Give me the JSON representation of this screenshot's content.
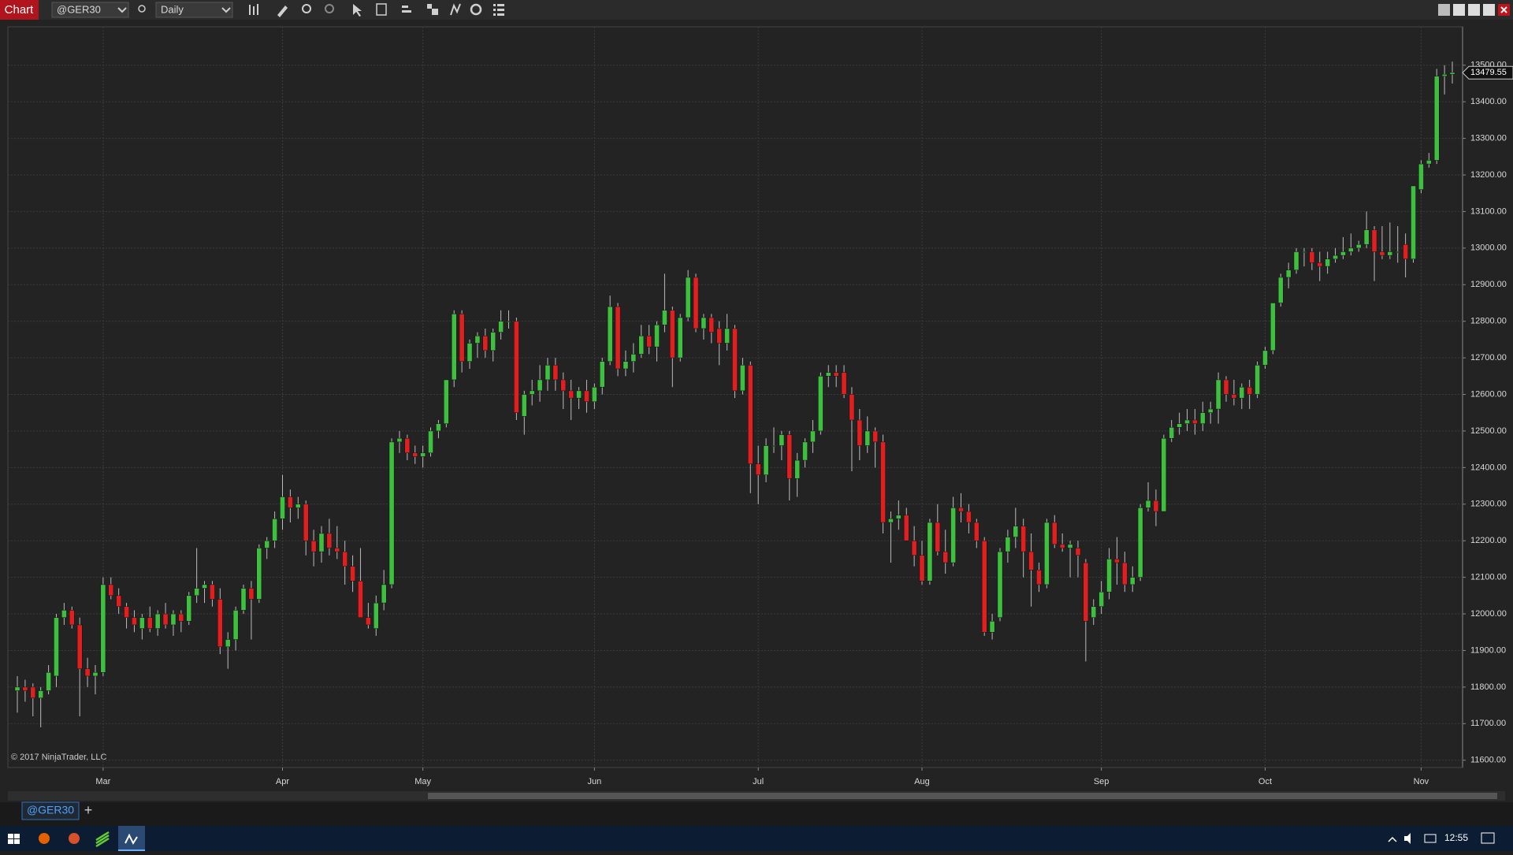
{
  "ui": {
    "window_tab": "Chart",
    "instrument": "@GER30",
    "interval": "Daily",
    "copyright": "© 2017 NinjaTrader, LLC",
    "bottom_tab": "@GER30",
    "add_tab": "+",
    "clock": "12:55"
  },
  "chart_data": {
    "type": "candlestick",
    "up_color": "#3fbf3f",
    "down_color": "#e02020",
    "grid": true,
    "ylim": [
      11580,
      13605
    ],
    "yticks": [
      {
        "value": 11600,
        "label": "11600.00"
      },
      {
        "value": 11700,
        "label": "11700.00"
      },
      {
        "value": 11800,
        "label": "11800.00"
      },
      {
        "value": 11900,
        "label": "11900.00"
      },
      {
        "value": 12000,
        "label": "12000.00"
      },
      {
        "value": 12100,
        "label": "12100.00"
      },
      {
        "value": 12200,
        "label": "12200.00"
      },
      {
        "value": 12300,
        "label": "12300.00"
      },
      {
        "value": 12400,
        "label": "12400.00"
      },
      {
        "value": 12500,
        "label": "12500.00"
      },
      {
        "value": 12600,
        "label": "12600.00"
      },
      {
        "value": 12700,
        "label": "12700.00"
      },
      {
        "value": 12800,
        "label": "12800.00"
      },
      {
        "value": 12900,
        "label": "12900.00"
      },
      {
        "value": 13000,
        "label": "13000.00"
      },
      {
        "value": 13100,
        "label": "13100.00"
      },
      {
        "value": 13200,
        "label": "13200.00"
      },
      {
        "value": 13300,
        "label": "13300.00"
      },
      {
        "value": 13400,
        "label": "13400.00"
      },
      {
        "value": 13500,
        "label": "13500.00"
      }
    ],
    "xticks": [
      {
        "value": 11,
        "label": "Mar"
      },
      {
        "value": 34,
        "label": "Apr"
      },
      {
        "value": 52,
        "label": "May"
      },
      {
        "value": 74,
        "label": "Jun"
      },
      {
        "value": 95,
        "label": "Jul"
      },
      {
        "value": 116,
        "label": "Aug"
      },
      {
        "value": 139,
        "label": "Sep"
      },
      {
        "value": 160,
        "label": "Oct"
      },
      {
        "value": 180,
        "label": "Nov"
      }
    ],
    "current_price": 13479.55,
    "ohlc": [
      [
        11790,
        11830,
        11730,
        11800
      ],
      [
        11800,
        11820,
        11760,
        11790
      ],
      [
        11800,
        11810,
        11720,
        11770
      ],
      [
        11770,
        11800,
        11690,
        11790
      ],
      [
        11790,
        11860,
        11780,
        11840
      ],
      [
        11830,
        12000,
        11800,
        11990
      ],
      [
        11990,
        12030,
        11970,
        12010
      ],
      [
        12010,
        12020,
        11960,
        11970
      ],
      [
        11970,
        11990,
        11720,
        11850
      ],
      [
        11850,
        11880,
        11800,
        11830
      ],
      [
        11830,
        11860,
        11780,
        11840
      ],
      [
        11840,
        12100,
        11830,
        12080
      ],
      [
        12080,
        12100,
        12040,
        12050
      ],
      [
        12050,
        12070,
        12000,
        12020
      ],
      [
        12020,
        12030,
        11960,
        11990
      ],
      [
        11990,
        12010,
        11950,
        11970
      ],
      [
        11960,
        12000,
        11930,
        11990
      ],
      [
        11990,
        12020,
        11950,
        11960
      ],
      [
        11960,
        12010,
        11940,
        12000
      ],
      [
        12000,
        12030,
        11960,
        11970
      ],
      [
        11970,
        12010,
        11940,
        12000
      ],
      [
        12000,
        12010,
        11950,
        11980
      ],
      [
        11980,
        12060,
        11970,
        12050
      ],
      [
        12050,
        12180,
        12030,
        12070
      ],
      [
        12070,
        12090,
        12030,
        12080
      ],
      [
        12080,
        12090,
        12020,
        12040
      ],
      [
        12040,
        12070,
        11890,
        11910
      ],
      [
        11910,
        11950,
        11850,
        11930
      ],
      [
        11930,
        12020,
        11900,
        12010
      ],
      [
        12010,
        12080,
        12000,
        12070
      ],
      [
        12070,
        12090,
        11930,
        12040
      ],
      [
        12040,
        12190,
        12030,
        12180
      ],
      [
        12180,
        12210,
        12150,
        12200
      ],
      [
        12200,
        12280,
        12180,
        12260
      ],
      [
        12260,
        12380,
        12230,
        12320
      ],
      [
        12320,
        12340,
        12250,
        12290
      ],
      [
        12290,
        12320,
        12260,
        12300
      ],
      [
        12300,
        12310,
        12160,
        12200
      ],
      [
        12200,
        12230,
        12130,
        12170
      ],
      [
        12170,
        12240,
        12140,
        12220
      ],
      [
        12220,
        12260,
        12160,
        12180
      ],
      [
        12180,
        12240,
        12150,
        12170
      ],
      [
        12170,
        12200,
        12080,
        12130
      ],
      [
        12130,
        12160,
        12060,
        12090
      ],
      [
        12090,
        12180,
        11990,
        11990
      ],
      [
        11990,
        12030,
        11960,
        11970
      ],
      [
        11960,
        12050,
        11940,
        12030
      ],
      [
        12030,
        12120,
        12010,
        12080
      ],
      [
        12080,
        12480,
        12070,
        12470
      ],
      [
        12470,
        12500,
        12440,
        12480
      ],
      [
        12480,
        12490,
        12420,
        12440
      ],
      [
        12440,
        12460,
        12410,
        12430
      ],
      [
        12430,
        12460,
        12400,
        12440
      ],
      [
        12440,
        12510,
        12430,
        12500
      ],
      [
        12500,
        12530,
        12480,
        12520
      ],
      [
        12520,
        12640,
        12510,
        12640
      ],
      [
        12640,
        12830,
        12620,
        12820
      ],
      [
        12820,
        12830,
        12660,
        12690
      ],
      [
        12690,
        12750,
        12670,
        12740
      ],
      [
        12740,
        12770,
        12700,
        12760
      ],
      [
        12760,
        12780,
        12700,
        12720
      ],
      [
        12720,
        12780,
        12690,
        12770
      ],
      [
        12770,
        12830,
        12750,
        12800
      ],
      [
        12800,
        12830,
        12780,
        12800
      ],
      [
        12800,
        12810,
        12530,
        12550
      ],
      [
        12540,
        12610,
        12490,
        12600
      ],
      [
        12600,
        12640,
        12570,
        12610
      ],
      [
        12610,
        12680,
        12580,
        12640
      ],
      [
        12640,
        12700,
        12610,
        12680
      ],
      [
        12680,
        12700,
        12610,
        12640
      ],
      [
        12640,
        12660,
        12560,
        12610
      ],
      [
        12610,
        12640,
        12530,
        12590
      ],
      [
        12590,
        12620,
        12560,
        12610
      ],
      [
        12610,
        12640,
        12550,
        12580
      ],
      [
        12580,
        12630,
        12560,
        12620
      ],
      [
        12620,
        12700,
        12600,
        12690
      ],
      [
        12690,
        12870,
        12680,
        12840
      ],
      [
        12840,
        12850,
        12650,
        12670
      ],
      [
        12670,
        12720,
        12650,
        12690
      ],
      [
        12690,
        12740,
        12660,
        12710
      ],
      [
        12710,
        12790,
        12700,
        12760
      ],
      [
        12760,
        12790,
        12710,
        12730
      ],
      [
        12730,
        12800,
        12690,
        12790
      ],
      [
        12790,
        12930,
        12770,
        12830
      ],
      [
        12830,
        12840,
        12620,
        12700
      ],
      [
        12700,
        12820,
        12690,
        12810
      ],
      [
        12810,
        12940,
        12800,
        12920
      ],
      [
        12920,
        12930,
        12770,
        12780
      ],
      [
        12780,
        12820,
        12750,
        12810
      ],
      [
        12810,
        12820,
        12740,
        12770
      ],
      [
        12780,
        12800,
        12680,
        12740
      ],
      [
        12740,
        12820,
        12720,
        12780
      ],
      [
        12780,
        12790,
        12590,
        12610
      ],
      [
        12610,
        12700,
        12600,
        12680
      ],
      [
        12680,
        12690,
        12330,
        12410
      ],
      [
        12410,
        12460,
        12300,
        12380
      ],
      [
        12380,
        12480,
        12360,
        12460
      ],
      [
        12460,
        12510,
        12440,
        12460
      ],
      [
        12460,
        12500,
        12420,
        12490
      ],
      [
        12490,
        12500,
        12310,
        12370
      ],
      [
        12370,
        12440,
        12320,
        12420
      ],
      [
        12420,
        12480,
        12400,
        12470
      ],
      [
        12470,
        12530,
        12440,
        12500
      ],
      [
        12500,
        12660,
        12490,
        12650
      ],
      [
        12650,
        12680,
        12620,
        12660
      ],
      [
        12660,
        12680,
        12620,
        12650
      ],
      [
        12660,
        12680,
        12590,
        12600
      ],
      [
        12600,
        12620,
        12390,
        12530
      ],
      [
        12530,
        12560,
        12420,
        12460
      ],
      [
        12460,
        12540,
        12440,
        12500
      ],
      [
        12500,
        12510,
        12400,
        12470
      ],
      [
        12470,
        12490,
        12220,
        12250
      ],
      [
        12250,
        12280,
        12140,
        12260
      ],
      [
        12260,
        12310,
        12230,
        12270
      ],
      [
        12270,
        12290,
        12200,
        12200
      ],
      [
        12200,
        12240,
        12130,
        12160
      ],
      [
        12160,
        12200,
        12080,
        12090
      ],
      [
        12090,
        12260,
        12080,
        12250
      ],
      [
        12250,
        12300,
        12160,
        12170
      ],
      [
        12170,
        12230,
        12110,
        12140
      ],
      [
        12140,
        12320,
        12130,
        12290
      ],
      [
        12290,
        12330,
        12250,
        12280
      ],
      [
        12280,
        12300,
        12220,
        12250
      ],
      [
        12250,
        12260,
        12180,
        12200
      ],
      [
        12200,
        12210,
        11940,
        11950
      ],
      [
        11950,
        12000,
        11930,
        11980
      ],
      [
        11990,
        12180,
        11980,
        12170
      ],
      [
        12170,
        12230,
        12140,
        12210
      ],
      [
        12210,
        12290,
        12180,
        12240
      ],
      [
        12240,
        12260,
        12100,
        12170
      ],
      [
        12170,
        12220,
        12020,
        12120
      ],
      [
        12120,
        12140,
        12060,
        12080
      ],
      [
        12080,
        12260,
        12070,
        12250
      ],
      [
        12250,
        12270,
        12180,
        12190
      ],
      [
        12190,
        12220,
        12170,
        12180
      ],
      [
        12180,
        12200,
        12100,
        12190
      ],
      [
        12180,
        12200,
        12100,
        12160
      ],
      [
        12140,
        12150,
        11870,
        11980
      ],
      [
        11990,
        12040,
        11970,
        12020
      ],
      [
        12020,
        12090,
        12000,
        12060
      ],
      [
        12060,
        12180,
        12040,
        12150
      ],
      [
        12150,
        12210,
        12080,
        12140
      ],
      [
        12140,
        12170,
        12060,
        12080
      ],
      [
        12080,
        12130,
        12060,
        12100
      ],
      [
        12100,
        12300,
        12090,
        12290
      ],
      [
        12290,
        12360,
        12280,
        12310
      ],
      [
        12310,
        12340,
        12240,
        12280
      ],
      [
        12280,
        12490,
        12280,
        12480
      ],
      [
        12480,
        12530,
        12470,
        12510
      ],
      [
        12510,
        12550,
        12490,
        12520
      ],
      [
        12520,
        12560,
        12500,
        12530
      ],
      [
        12530,
        12560,
        12490,
        12520
      ],
      [
        12520,
        12580,
        12500,
        12550
      ],
      [
        12550,
        12580,
        12520,
        12560
      ],
      [
        12560,
        12660,
        12520,
        12640
      ],
      [
        12640,
        12650,
        12580,
        12600
      ],
      [
        12600,
        12640,
        12570,
        12590
      ],
      [
        12590,
        12630,
        12560,
        12620
      ],
      [
        12620,
        12640,
        12560,
        12600
      ],
      [
        12600,
        12690,
        12590,
        12680
      ],
      [
        12680,
        12730,
        12670,
        12720
      ],
      [
        12720,
        12850,
        12710,
        12850
      ],
      [
        12850,
        12930,
        12840,
        12920
      ],
      [
        12920,
        12960,
        12890,
        12940
      ],
      [
        12940,
        13000,
        12930,
        12990
      ],
      [
        12990,
        13000,
        12950,
        12990
      ],
      [
        12990,
        13000,
        12940,
        12960
      ],
      [
        12960,
        12990,
        12910,
        12950
      ],
      [
        12950,
        12990,
        12930,
        12970
      ],
      [
        12970,
        13000,
        12960,
        12980
      ],
      [
        12980,
        13030,
        12970,
        12990
      ],
      [
        12990,
        13040,
        12980,
        13000
      ],
      [
        13000,
        13020,
        12990,
        13010
      ],
      [
        13010,
        13100,
        13000,
        13050
      ],
      [
        13050,
        13060,
        12910,
        12990
      ],
      [
        12990,
        13060,
        12970,
        12980
      ],
      [
        12980,
        13070,
        12970,
        12990
      ],
      [
        12990,
        13060,
        12960,
        12990
      ],
      [
        13010,
        13040,
        12920,
        12970
      ],
      [
        12970,
        13170,
        12960,
        13170
      ],
      [
        13160,
        13240,
        13150,
        13230
      ],
      [
        13230,
        13260,
        13220,
        13240
      ],
      [
        13240,
        13490,
        13230,
        13470
      ],
      [
        13470,
        13500,
        13420,
        13475
      ],
      [
        13475,
        13510,
        13450,
        13480
      ]
    ]
  }
}
